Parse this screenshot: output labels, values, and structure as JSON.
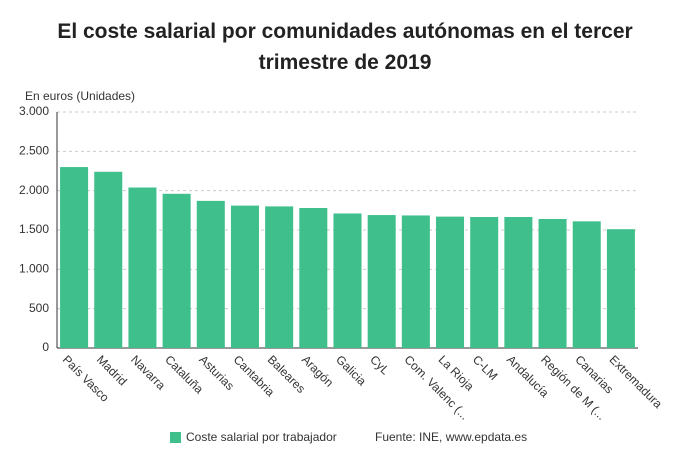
{
  "chart_data": {
    "type": "bar",
    "title": "El coste salarial por comunidades autónomas en el tercer trimestre de 2019",
    "y_axis_label": "En euros (Unidades)",
    "source": "Fuente: INE, www.epdata.es",
    "categories": [
      "País Vasco",
      "Madrid",
      "Navarra",
      "Cataluña",
      "Asturias",
      "Cantabria",
      "Baleares",
      "Aragón",
      "Galicia",
      "CyL",
      "Com. Valenc (...",
      "La Rioja",
      "C-LM",
      "Andalucía",
      "Región de M (...",
      "Canarias",
      "Extremadura"
    ],
    "series": [
      {
        "name": "Coste salarial por trabajador",
        "color": "#3ebf8b",
        "values": [
          2300,
          2240,
          2040,
          1960,
          1870,
          1810,
          1800,
          1780,
          1710,
          1690,
          1685,
          1670,
          1665,
          1665,
          1640,
          1610,
          1510
        ]
      }
    ],
    "ylim": [
      0,
      3000
    ],
    "yticks": [
      0,
      {
        "value": 500,
        "label": "500"
      },
      {
        "value": 1000,
        "label": "1.000"
      },
      {
        "value": 1500,
        "label": "1.500"
      },
      {
        "value": 2000,
        "label": "2.000"
      },
      {
        "value": 2500,
        "label": "2.500"
      },
      {
        "value": 3000,
        "label": "3.000"
      }
    ],
    "grid": true
  }
}
